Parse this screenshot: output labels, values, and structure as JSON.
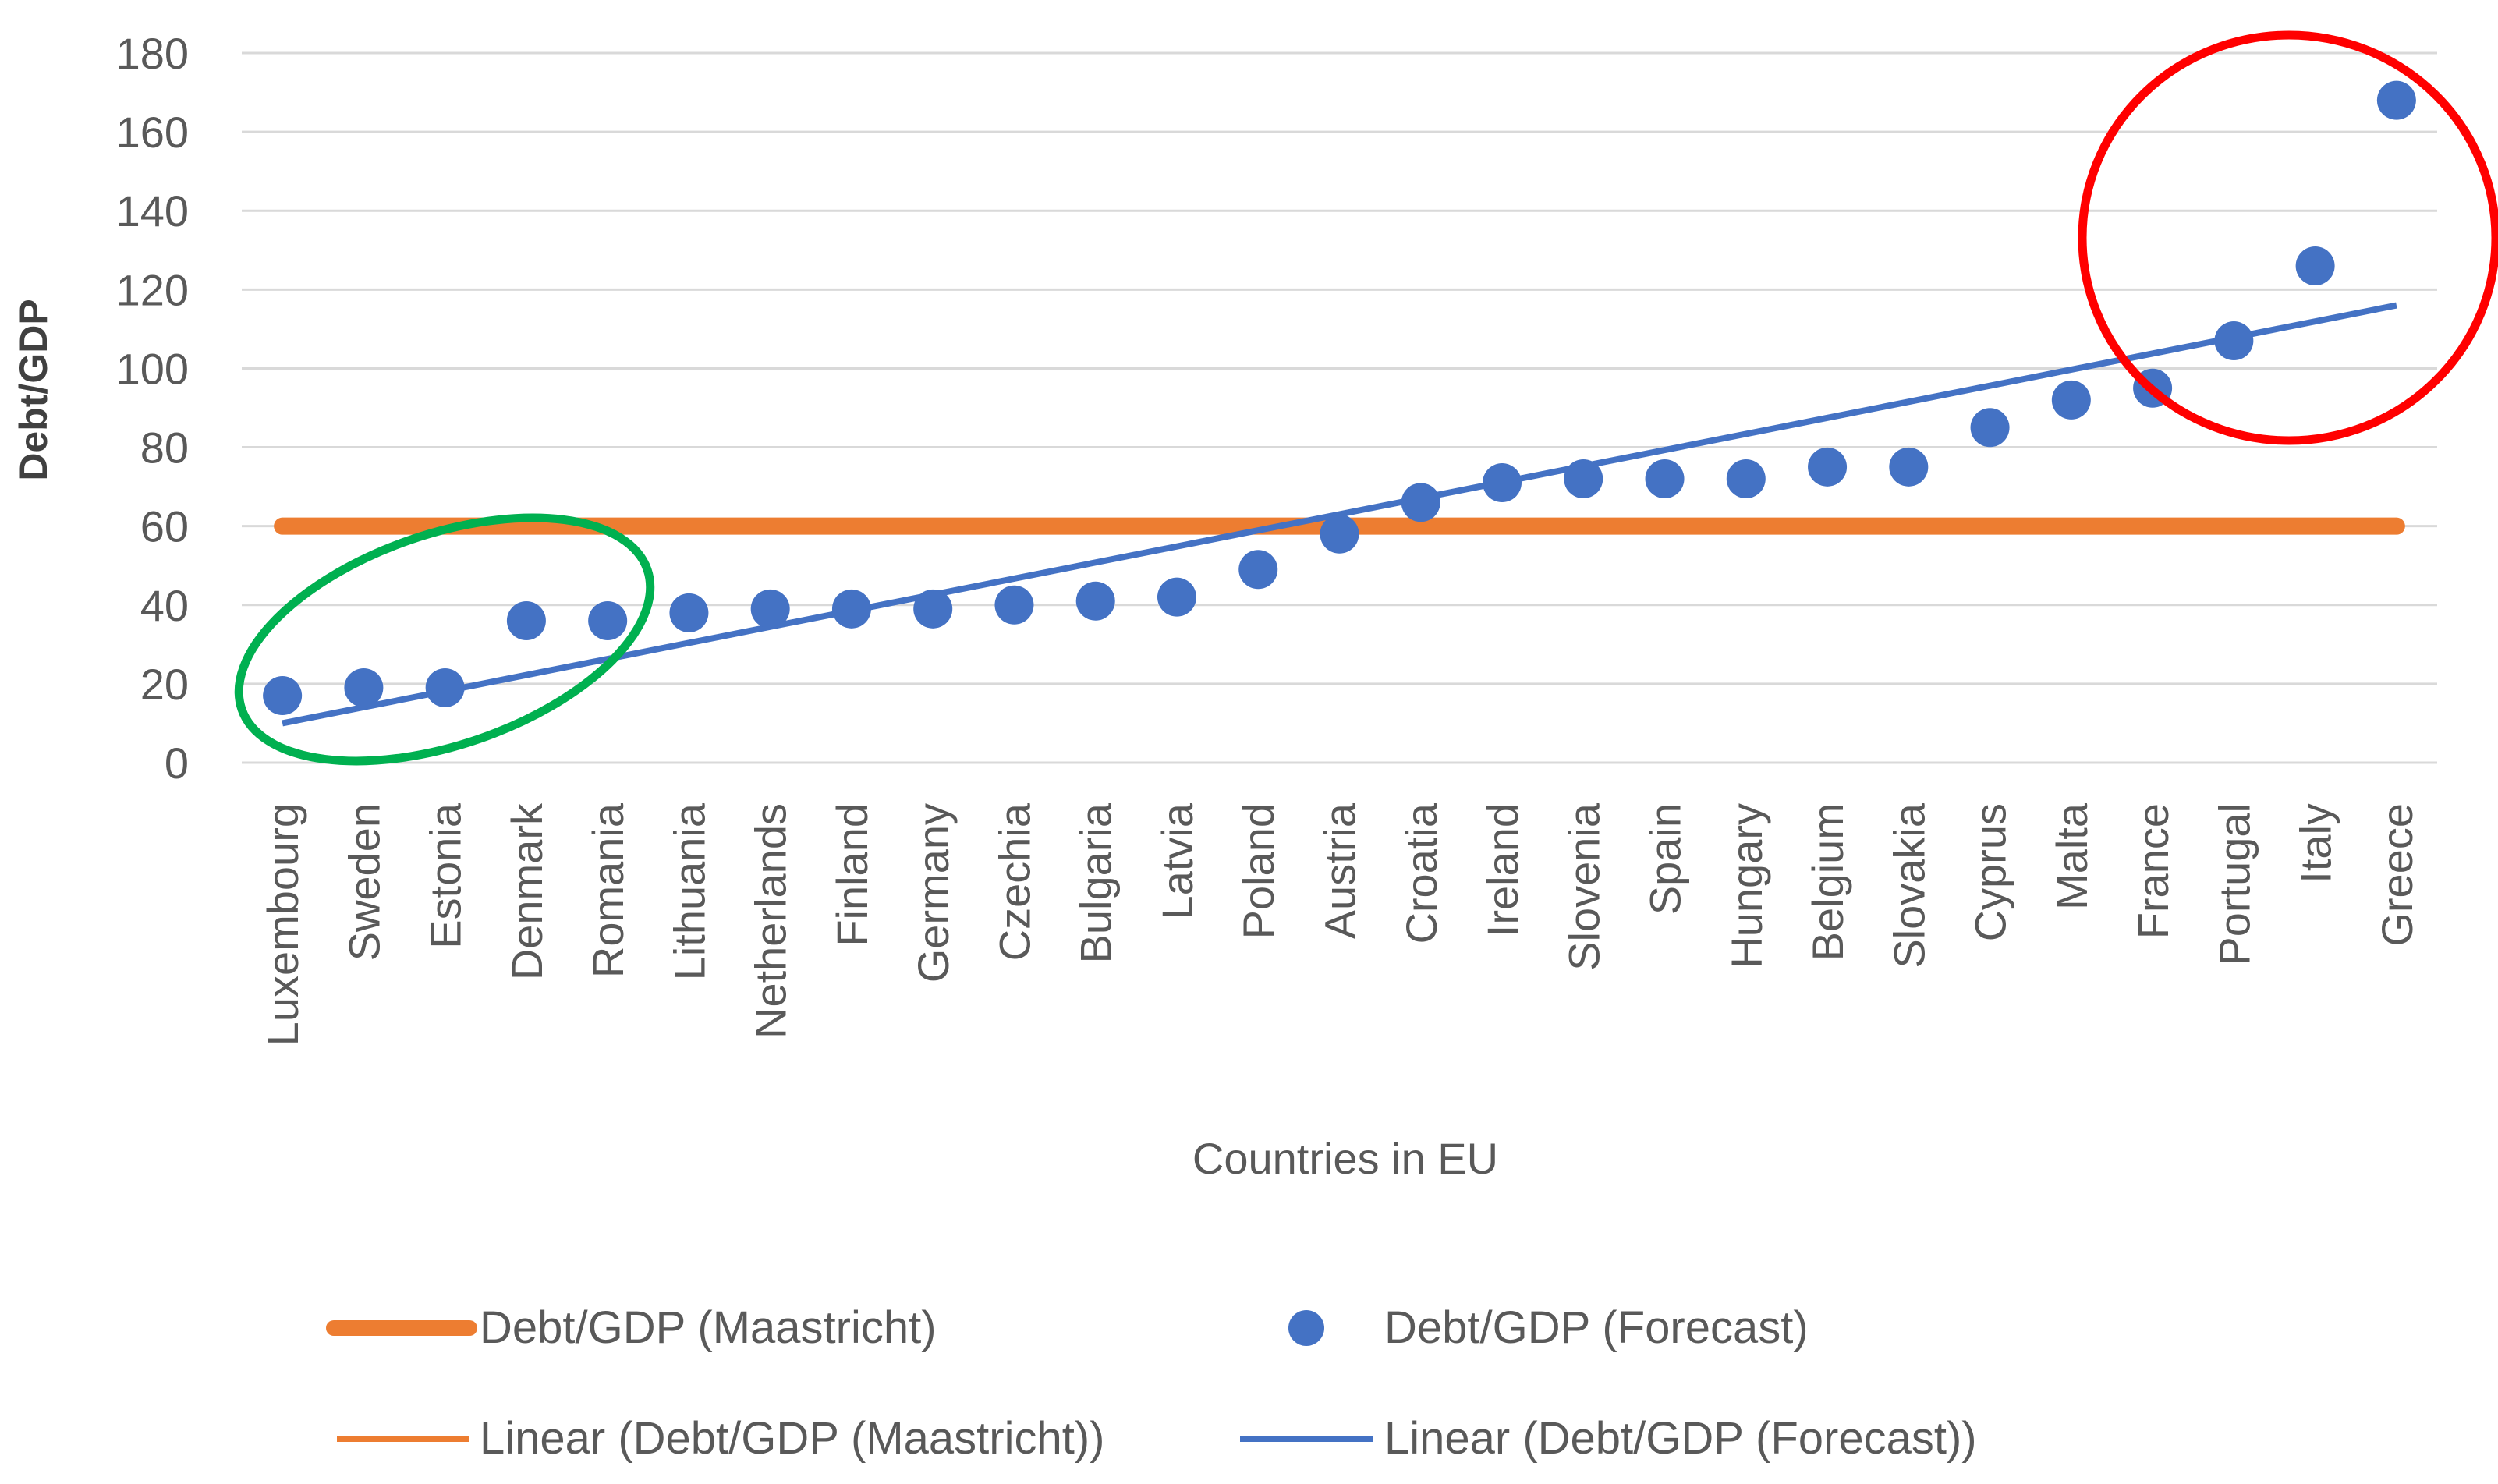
{
  "chart_data": {
    "type": "scatter",
    "title": "",
    "xlabel": "Countries in EU",
    "ylabel": "Debt/GDP",
    "ylim": [
      0,
      180
    ],
    "yticks": [
      "0",
      "20",
      "40",
      "60",
      "80",
      "100",
      "120",
      "140",
      "160",
      "180"
    ],
    "grid": true,
    "categories": [
      "Luxembourg",
      "Sweden",
      "Estonia",
      "Denmark",
      "Romania",
      "Lithuania",
      "Netherlands",
      "Finland",
      "Germany",
      "Czechia",
      "Bulgaria",
      "Latvia",
      "Poland",
      "Austria",
      "Croatia",
      "Ireland",
      "Slovenia",
      "Spain",
      "Hungary",
      "Belgium",
      "Slovakia",
      "Cyprus",
      "Malta",
      "France",
      "Portugal",
      "Italy",
      "Greece"
    ],
    "series": [
      {
        "name": "Debt/GDP (Maastricht)",
        "kind": "line",
        "color": "#ED7D31",
        "values": [
          60,
          60,
          60,
          60,
          60,
          60,
          60,
          60,
          60,
          60,
          60,
          60,
          60,
          60,
          60,
          60,
          60,
          60,
          60,
          60,
          60,
          60,
          60,
          60,
          60,
          60,
          60
        ]
      },
      {
        "name": "Debt/GDP (Forecast)",
        "kind": "scatter",
        "color": "#4472C4",
        "values": [
          17,
          19,
          19,
          36,
          36,
          38,
          39,
          39,
          39,
          40,
          41,
          42,
          49,
          58,
          66,
          71,
          72,
          72,
          72,
          75,
          75,
          85,
          92,
          95,
          107,
          126,
          168
        ]
      }
    ],
    "trendlines": [
      {
        "name": "Linear (Debt/GDP (Maastricht))",
        "color": "#ED7D31",
        "start": 60,
        "end": 60
      },
      {
        "name": "Linear (Debt/GDP (Forecast))",
        "color": "#4472C4",
        "start": 10,
        "end": 116
      }
    ],
    "annotations": [
      {
        "shape": "ellipse",
        "color": "#00B050",
        "encloses": [
          "Luxembourg",
          "Sweden",
          "Estonia",
          "Denmark",
          "Romania"
        ]
      },
      {
        "shape": "ellipse",
        "color": "#FF0000",
        "encloses": [
          "France",
          "Portugal",
          "Italy",
          "Greece"
        ]
      }
    ],
    "legend": {
      "placement": "bottom",
      "entries": [
        {
          "label": "Debt/GDP (Maastricht)",
          "type": "thick-line",
          "color": "#ED7D31"
        },
        {
          "label": "Debt/GDP (Forecast)",
          "type": "marker",
          "color": "#4472C4"
        },
        {
          "label": "Linear (Debt/GDP (Maastricht))",
          "type": "thin-line",
          "color": "#ED7D31"
        },
        {
          "label": "Linear (Debt/GDP (Forecast))",
          "type": "thin-line",
          "color": "#4472C4"
        }
      ]
    }
  }
}
